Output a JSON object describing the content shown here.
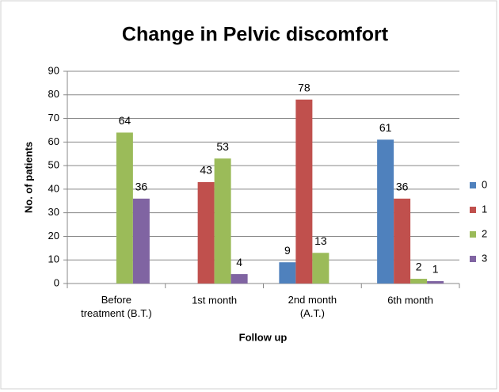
{
  "chart_data": {
    "type": "bar",
    "title": "Change in Pelvic discomfort",
    "x_label": "Follow up",
    "y_label": "No. of patients",
    "categories": [
      "Before\ntreatment (B.T.)",
      "1st month",
      "2nd month\n(A.T.)",
      "6th month"
    ],
    "series": [
      {
        "name": "0",
        "color": "#4f81bd",
        "values": [
          null,
          null,
          9,
          61
        ]
      },
      {
        "name": "1",
        "color": "#c0504d",
        "values": [
          null,
          43,
          78,
          36
        ]
      },
      {
        "name": "2",
        "color": "#9bbb59",
        "values": [
          64,
          53,
          13,
          2
        ]
      },
      {
        "name": "3",
        "color": "#8064a2",
        "values": [
          36,
          4,
          null,
          1
        ]
      }
    ],
    "ylim": [
      0,
      90
    ],
    "yticks": [
      0,
      10,
      20,
      30,
      40,
      50,
      60,
      70,
      80,
      90
    ],
    "grid": true,
    "legend": "right"
  }
}
